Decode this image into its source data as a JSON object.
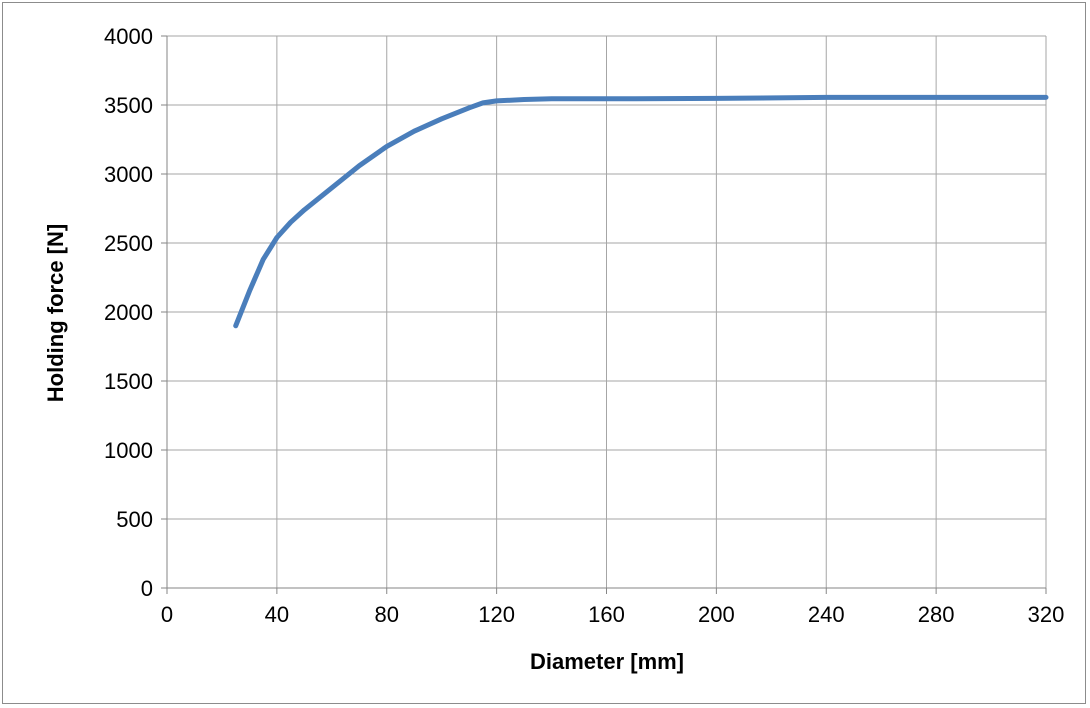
{
  "chart_data": {
    "type": "line",
    "title": "",
    "xlabel": "Diameter [mm]",
    "ylabel": "Holding force [N]",
    "xlim": [
      0,
      320
    ],
    "ylim": [
      0,
      4000
    ],
    "xticks": [
      0,
      40,
      80,
      120,
      160,
      200,
      240,
      280,
      320
    ],
    "yticks": [
      0,
      500,
      1000,
      1500,
      2000,
      2500,
      3000,
      3500,
      4000
    ],
    "grid": true,
    "series": [
      {
        "color": "#4a7ebb",
        "x": [
          25,
          30,
          35,
          40,
          45,
          50,
          60,
          70,
          80,
          90,
          100,
          110,
          115,
          120,
          130,
          140,
          160,
          200,
          240,
          280,
          320
        ],
        "y": [
          1900,
          2150,
          2380,
          2540,
          2650,
          2740,
          2900,
          3060,
          3200,
          3310,
          3400,
          3480,
          3515,
          3530,
          3540,
          3545,
          3545,
          3548,
          3555,
          3555,
          3555
        ]
      }
    ]
  }
}
